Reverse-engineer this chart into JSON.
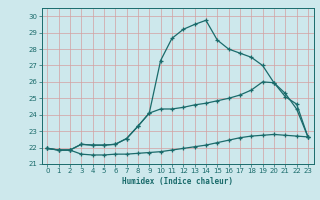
{
  "xlabel": "Humidex (Indice chaleur)",
  "background_color": "#cde8ec",
  "grid_color": "#b0d4d8",
  "line_color": "#1a6b6b",
  "xlim": [
    -0.5,
    23.5
  ],
  "ylim": [
    21.0,
    30.5
  ],
  "xticks": [
    0,
    1,
    2,
    3,
    4,
    5,
    6,
    7,
    8,
    9,
    10,
    11,
    12,
    13,
    14,
    15,
    16,
    17,
    18,
    19,
    20,
    21,
    22,
    23
  ],
  "yticks": [
    21,
    22,
    23,
    24,
    25,
    26,
    27,
    28,
    29,
    30
  ],
  "line1_x": [
    0,
    1,
    2,
    3,
    4,
    5,
    6,
    7,
    8,
    9,
    10,
    11,
    12,
    13,
    14,
    15,
    16,
    17,
    18,
    19,
    20,
    21,
    22,
    23
  ],
  "line1_y": [
    21.95,
    21.85,
    21.85,
    21.6,
    21.55,
    21.55,
    21.6,
    21.6,
    21.65,
    21.7,
    21.75,
    21.85,
    21.95,
    22.05,
    22.15,
    22.3,
    22.45,
    22.6,
    22.7,
    22.75,
    22.8,
    22.75,
    22.7,
    22.65
  ],
  "line2_x": [
    0,
    1,
    2,
    3,
    4,
    5,
    6,
    7,
    8,
    9,
    10,
    11,
    12,
    13,
    14,
    15,
    16,
    17,
    18,
    19,
    20,
    21,
    22,
    23
  ],
  "line2_y": [
    21.95,
    21.85,
    21.85,
    22.2,
    22.15,
    22.15,
    22.2,
    22.55,
    23.3,
    24.1,
    24.35,
    24.35,
    24.45,
    24.6,
    24.7,
    24.85,
    25.0,
    25.2,
    25.5,
    26.0,
    25.95,
    25.1,
    24.65,
    22.65
  ],
  "line3_x": [
    0,
    1,
    2,
    3,
    4,
    5,
    6,
    7,
    8,
    9,
    10,
    11,
    12,
    13,
    14,
    15,
    16,
    17,
    18,
    19,
    20,
    21,
    22,
    23
  ],
  "line3_y": [
    21.95,
    21.85,
    21.85,
    22.2,
    22.15,
    22.15,
    22.2,
    22.55,
    23.3,
    24.1,
    27.3,
    28.65,
    29.2,
    29.5,
    29.75,
    28.55,
    28.0,
    27.75,
    27.5,
    27.0,
    25.95,
    25.3,
    24.35,
    22.65
  ]
}
